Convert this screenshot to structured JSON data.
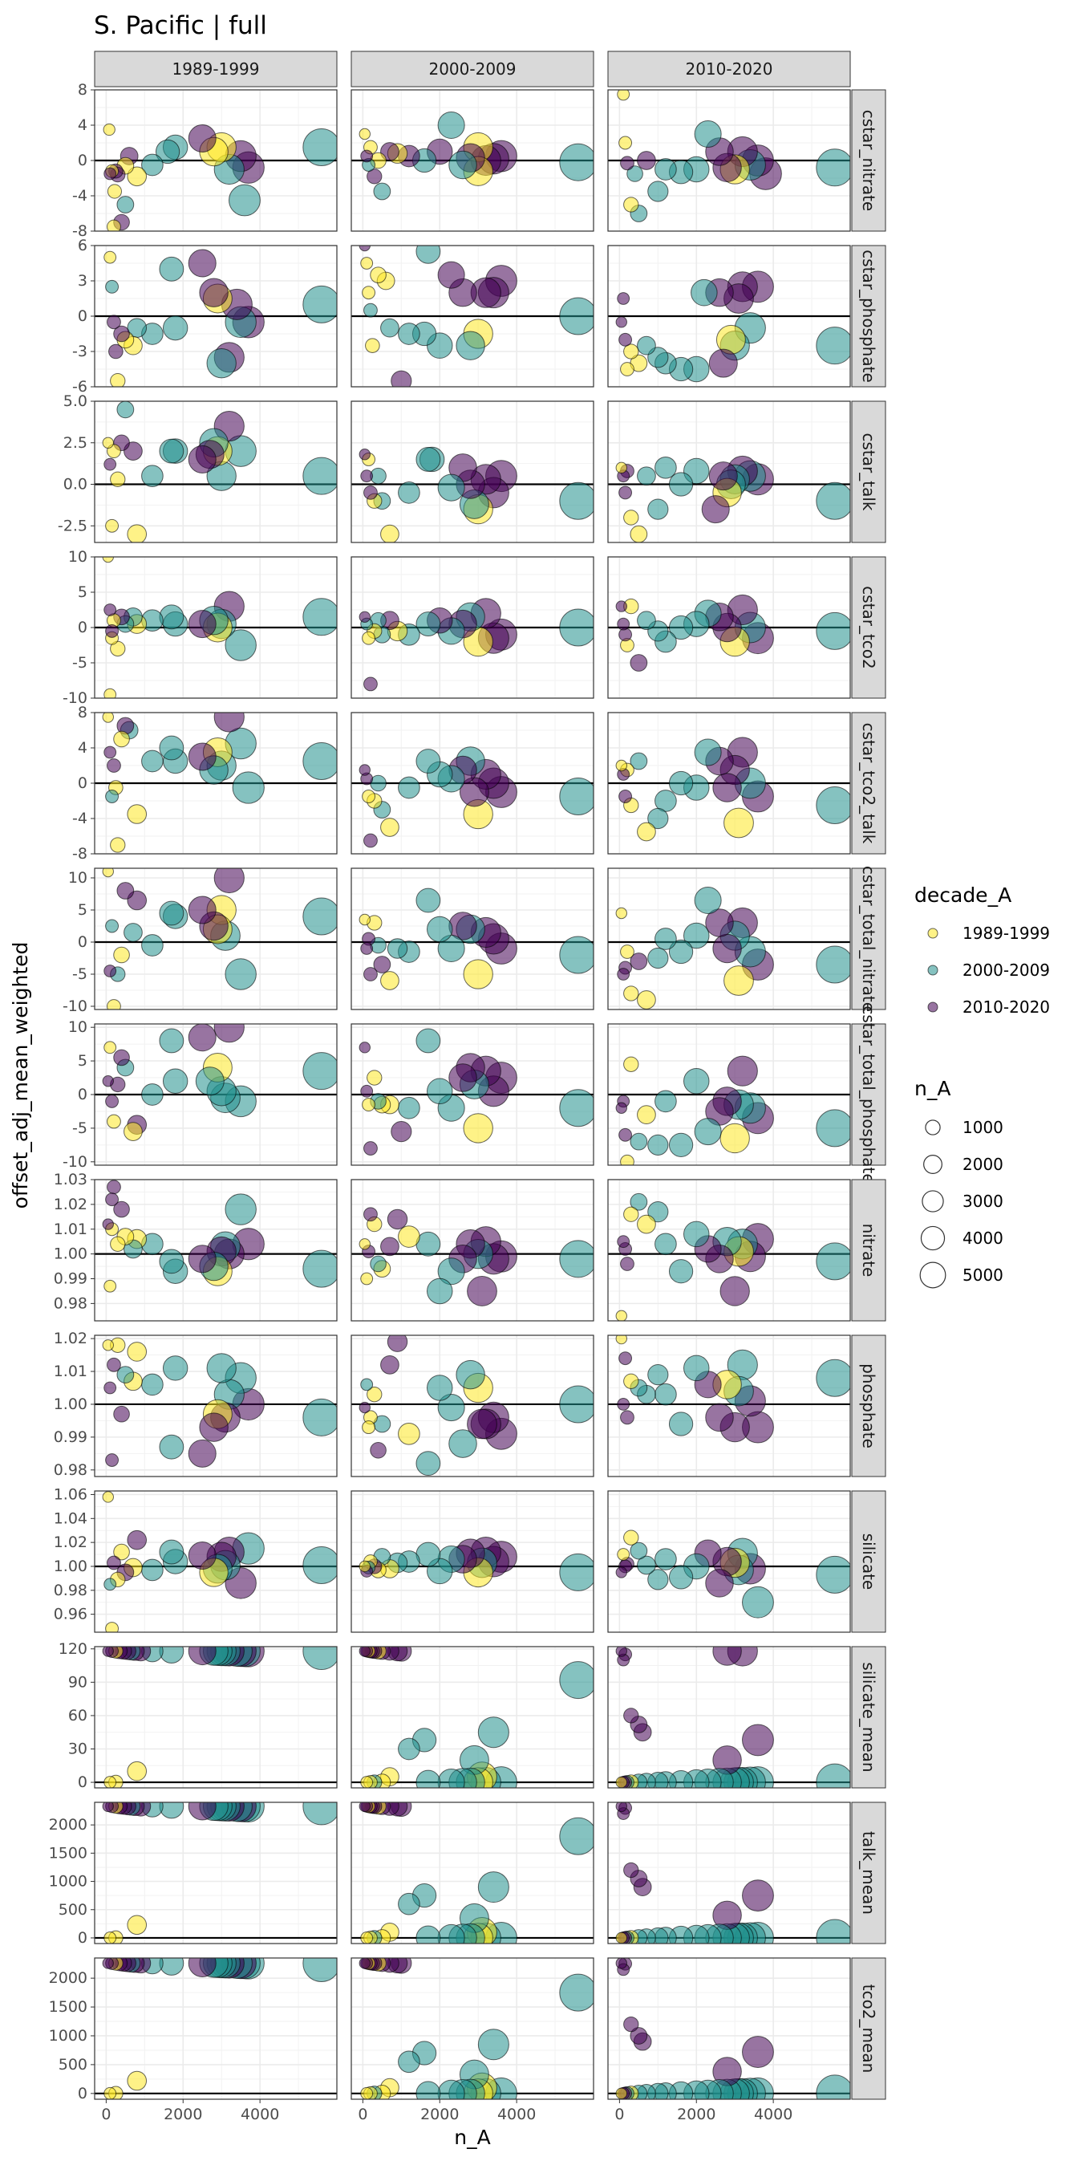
{
  "chart_data": {
    "type": "scatter",
    "title": "S. Pacific | full",
    "xlabel": "n_A",
    "ylabel": "offset_adj_mean_weighted",
    "x_ticks": [
      0,
      2000,
      4000
    ],
    "x_tick_labels": [
      "0",
      "2000",
      "4000"
    ],
    "xlim": [
      -300,
      6000
    ],
    "grid": true,
    "legend_placement": "right",
    "columns": [
      "1989-1999",
      "2000-2009",
      "2010-2020"
    ],
    "color_legend": {
      "title": "decade_A",
      "entries": [
        {
          "label": "1989-1999",
          "color": "#FDE725"
        },
        {
          "label": "2000-2009",
          "color": "#21908C"
        },
        {
          "label": "2010-2020",
          "color": "#440154"
        }
      ]
    },
    "size_legend": {
      "title": "n_A",
      "values": [
        1000,
        2000,
        3000,
        4000,
        5000
      ],
      "labels": [
        "1000",
        "2000",
        "3000",
        "4000",
        "5000"
      ]
    },
    "panels": [
      {
        "name": "cstar_nitrate",
        "strip": "cstar_nitrate",
        "ylim": [
          -8,
          8
        ],
        "ticks": [
          -8,
          -4,
          0,
          4,
          8
        ],
        "tick_labels": [
          "-8",
          "-4",
          "0",
          "4",
          "8"
        ],
        "points": [
          [
            [
              0,
              80,
              3.5,
              0
            ],
            [
              0,
              150,
              -1.2,
              0
            ],
            [
              0,
              220,
              -3.5,
              0
            ],
            [
              0,
              300,
              -1.6,
              2
            ],
            [
              0,
              400,
              -7.0,
              2
            ],
            [
              0,
              500,
              -0.6,
              0
            ],
            [
              0,
              600,
              0.5,
              2
            ],
            [
              0,
              800,
              -1.8,
              0
            ],
            [
              0,
              1200,
              -0.5,
              1
            ],
            [
              0,
              1600,
              1.0,
              1
            ],
            [
              0,
              1800,
              1.5,
              1
            ],
            [
              0,
              2500,
              2.5,
              2
            ],
            [
              0,
              2800,
              1.0,
              0
            ],
            [
              0,
              3000,
              1.5,
              0
            ],
            [
              0,
              3200,
              -1.0,
              1
            ],
            [
              0,
              3500,
              0.5,
              2
            ],
            [
              0,
              3600,
              -4.5,
              1
            ],
            [
              0,
              3700,
              -0.8,
              2
            ],
            [
              0,
              5600,
              1.5,
              1
            ],
            [
              0,
              100,
              -1.5,
              2
            ],
            [
              0,
              200,
              -7.5,
              0
            ],
            [
              0,
              250,
              -1.2,
              2
            ],
            [
              0,
              500,
              -5.0,
              1
            ],
            [
              1,
              50,
              3.0,
              0
            ],
            [
              1,
              100,
              0.5,
              2
            ],
            [
              1,
              150,
              -0.5,
              1
            ],
            [
              1,
              200,
              1.5,
              0
            ],
            [
              1,
              300,
              -1.8,
              2
            ],
            [
              1,
              400,
              0.0,
              0
            ],
            [
              1,
              500,
              -3.5,
              1
            ],
            [
              1,
              700,
              1.0,
              2
            ],
            [
              1,
              900,
              0.8,
              0
            ],
            [
              1,
              1200,
              0.5,
              2
            ],
            [
              1,
              1600,
              0.0,
              1
            ],
            [
              1,
              2000,
              1.0,
              2
            ],
            [
              1,
              2300,
              4.0,
              1
            ],
            [
              1,
              2600,
              -0.5,
              1
            ],
            [
              1,
              2800,
              0.3,
              2
            ],
            [
              1,
              3000,
              1.5,
              0
            ],
            [
              1,
              3000,
              -1.2,
              0
            ],
            [
              1,
              3200,
              0.0,
              2
            ],
            [
              1,
              3400,
              0.2,
              2
            ],
            [
              1,
              3600,
              0.5,
              2
            ],
            [
              1,
              5600,
              -0.2,
              1
            ]
          ],
          [
            [
              2,
              100,
              7.5,
              0
            ],
            [
              2,
              150,
              2.0,
              0
            ],
            [
              2,
              200,
              -0.3,
              2
            ],
            [
              2,
              300,
              -5.0,
              0
            ],
            [
              2,
              400,
              -1.5,
              1
            ],
            [
              2,
              500,
              -6.0,
              1
            ],
            [
              2,
              700,
              0.0,
              2
            ],
            [
              2,
              1000,
              -3.5,
              1
            ],
            [
              2,
              1200,
              -1.0,
              1
            ],
            [
              2,
              1600,
              -1.3,
              1
            ],
            [
              2,
              2000,
              -1.0,
              1
            ],
            [
              2,
              2300,
              3.0,
              1
            ],
            [
              2,
              2600,
              1.0,
              2
            ],
            [
              2,
              2800,
              -0.8,
              2
            ],
            [
              2,
              3000,
              -1.0,
              0
            ],
            [
              2,
              3200,
              1.0,
              2
            ],
            [
              2,
              3400,
              -0.5,
              1
            ],
            [
              2,
              3600,
              0.0,
              2
            ],
            [
              2,
              3800,
              -1.5,
              2
            ],
            [
              2,
              5600,
              -0.8,
              1
            ]
          ]
        ]
      }
    ]
  }
}
